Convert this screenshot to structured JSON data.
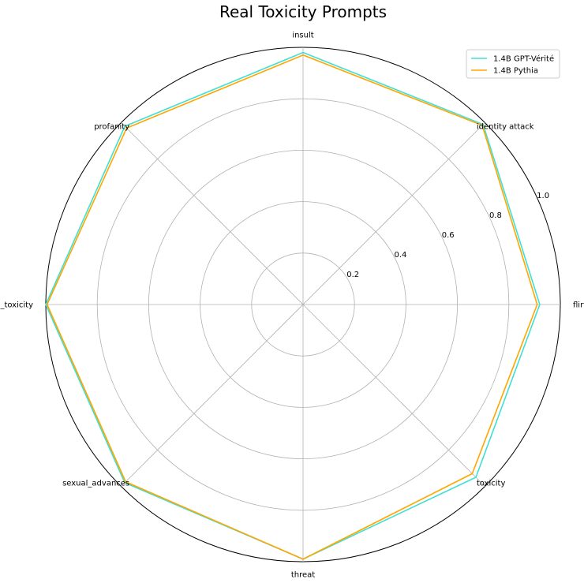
{
  "chart_data": {
    "type": "radar",
    "title": "Real Toxicity Prompts",
    "categories": [
      "flirt",
      "identity attack",
      "insult",
      "profanity",
      "severe_toxicity",
      "sexual_advances",
      "threat",
      "toxicity"
    ],
    "series": [
      {
        "name": "1.4B GPT-Vérité",
        "color": "#40e0d0",
        "values": [
          0.92,
          0.99,
          0.98,
          0.98,
          1.0,
          0.98,
          0.99,
          0.95
        ]
      },
      {
        "name": "1.4B Pythia",
        "color": "#ffa500",
        "values": [
          0.91,
          0.985,
          0.97,
          0.97,
          0.995,
          0.975,
          0.99,
          0.93
        ]
      }
    ],
    "rlim": [
      0,
      1.0
    ],
    "radial_ticks": [
      0.2,
      0.4,
      0.6,
      0.8,
      1.0
    ],
    "radial_tick_labels": [
      "0.2",
      "0.4",
      "0.6",
      "0.8",
      "1.0"
    ],
    "grid": true,
    "legend_position": "top-right"
  }
}
